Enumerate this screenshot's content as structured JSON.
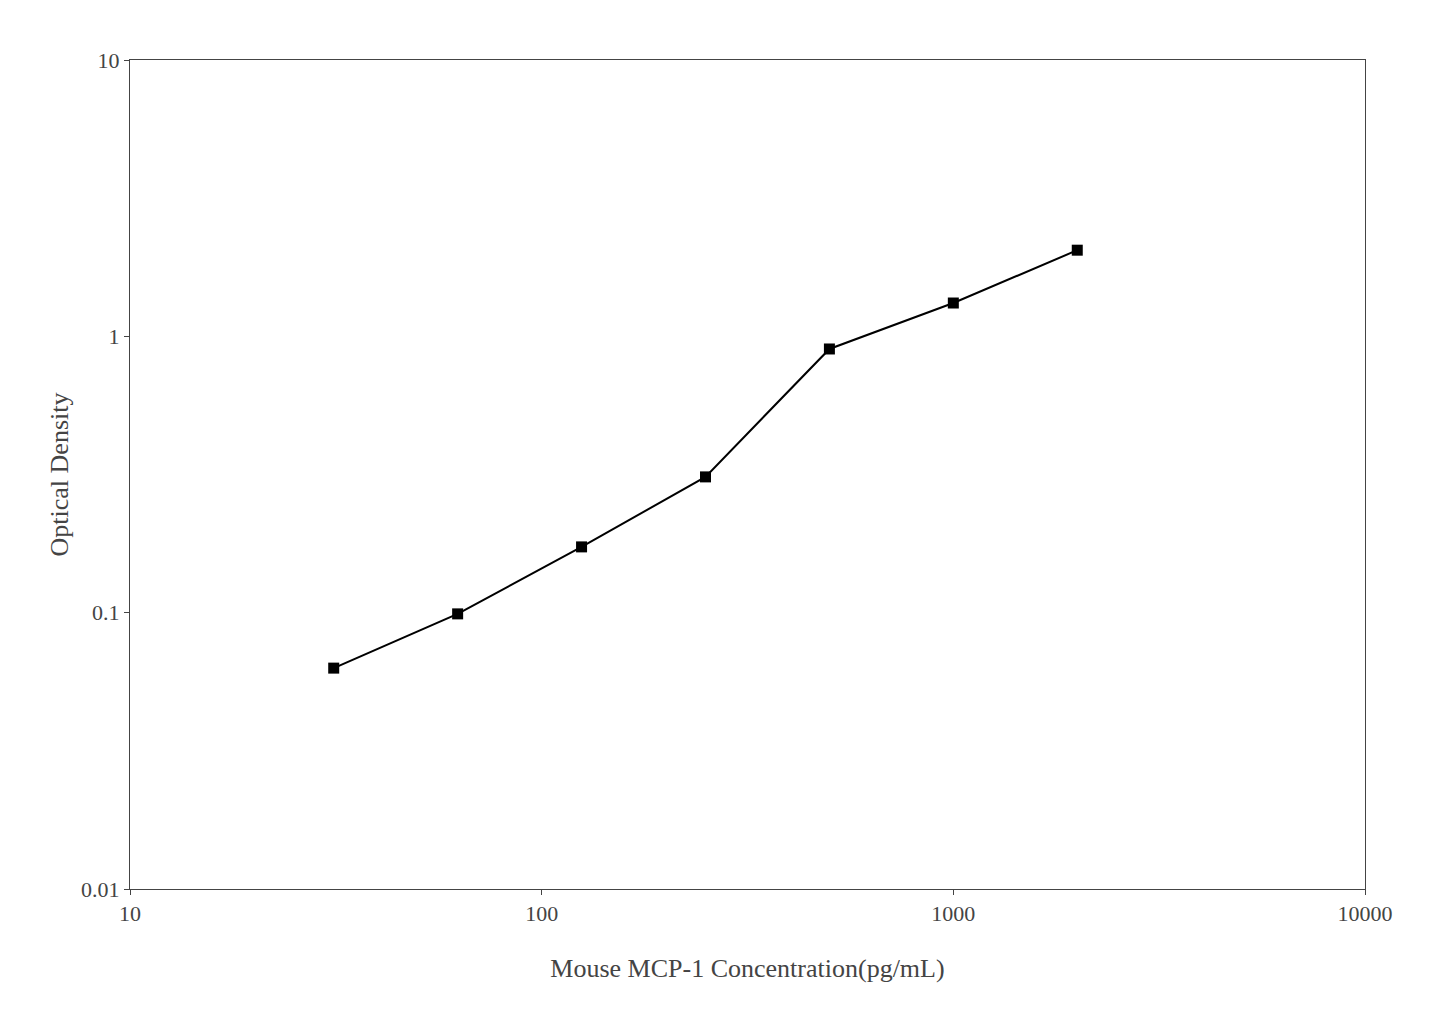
{
  "chart_data": {
    "type": "line",
    "x": [
      31.25,
      62.5,
      125,
      250,
      500,
      1000,
      2000
    ],
    "values": [
      0.063,
      0.099,
      0.173,
      0.31,
      0.9,
      1.32,
      2.05
    ],
    "xlabel": "Mouse MCP-1 Concentration(pg/mL)",
    "ylabel": "Optical Density",
    "xlim": [
      10,
      10000
    ],
    "ylim": [
      0.01,
      10
    ],
    "xticks": [
      10,
      100,
      1000,
      10000
    ],
    "yticks": [
      0.01,
      0.1,
      1,
      10
    ],
    "log": true,
    "color": "#000000",
    "marker": "square",
    "grid": false
  }
}
